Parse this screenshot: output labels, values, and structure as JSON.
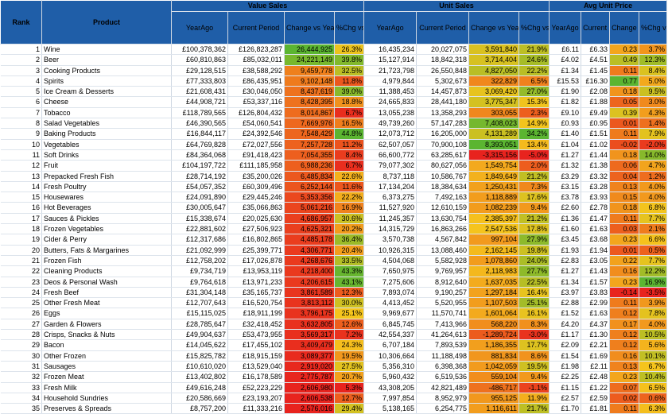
{
  "chart_data": {
    "type": "table",
    "group_headers": [
      "Value Sales",
      "Unit Sales",
      "Avg Unit Price"
    ],
    "columns": [
      "Rank",
      "Product",
      "YearAgo",
      "Current Period",
      "Change vs Year Ago",
      "%Chg vs YA",
      "YearAgo",
      "Current Period",
      "Change vs Year Ago",
      "%Chg vs YA",
      "YearAgo",
      "Current Period",
      "Change vs Year Ago",
      "%Chg vs YA"
    ],
    "rows": [
      [
        "1",
        "Wine",
        "£100,378,362",
        "£126,823,287",
        "26,444,925",
        "26.3%",
        "16,435,234",
        "20,027,075",
        "3,591,840",
        "21.9%",
        "£6.11",
        "£6.33",
        "0.23",
        "3.7%"
      ],
      [
        "2",
        "Beer",
        "£60,810,863",
        "£85,032,011",
        "24,221,149",
        "39.8%",
        "15,127,914",
        "18,842,318",
        "3,714,404",
        "24.6%",
        "£4.02",
        "£4.51",
        "0.49",
        "12.3%"
      ],
      [
        "3",
        "Cooking Products",
        "£29,128,515",
        "£38,588,292",
        "9,459,778",
        "32.5%",
        "21,723,798",
        "26,550,848",
        "4,827,050",
        "22.2%",
        "£1.34",
        "£1.45",
        "0.11",
        "8.4%"
      ],
      [
        "4",
        "Spirits",
        "£77,333,803",
        "£86,435,951",
        "9,102,148",
        "11.8%",
        "4,979,844",
        "5,302,673",
        "322,829",
        "6.5%",
        "£15.53",
        "£16.30",
        "0.77",
        "5.0%"
      ],
      [
        "5",
        "Ice Cream & Desserts",
        "£21,608,431",
        "£30,046,050",
        "8,437,619",
        "39.0%",
        "11,388,453",
        "14,457,873",
        "3,069,420",
        "27.0%",
        "£1.90",
        "£2.08",
        "0.18",
        "9.5%"
      ],
      [
        "6",
        "Cheese",
        "£44,908,721",
        "£53,337,116",
        "8,428,395",
        "18.8%",
        "24,665,833",
        "28,441,180",
        "3,775,347",
        "15.3%",
        "£1.82",
        "£1.88",
        "0.05",
        "3.0%"
      ],
      [
        "7",
        "Tobacco",
        "£118,789,565",
        "£126,804,432",
        "8,014,867",
        "6.7%",
        "13,055,238",
        "13,358,293",
        "303,055",
        "2.3%",
        "£9.10",
        "£9.49",
        "0.39",
        "4.3%"
      ],
      [
        "8",
        "Salad Vegetables",
        "£46,390,565",
        "£54,060,541",
        "7,669,976",
        "16.5%",
        "49,739,260",
        "57,147,283",
        "7,408,023",
        "14.9%",
        "£0.93",
        "£0.95",
        "0.01",
        "1.4%"
      ],
      [
        "9",
        "Baking Products",
        "£16,844,117",
        "£24,392,546",
        "7,548,429",
        "44.8%",
        "12,073,712",
        "16,205,000",
        "4,131,289",
        "34.2%",
        "£1.40",
        "£1.51",
        "0.11",
        "7.9%"
      ],
      [
        "10",
        "Vegetables",
        "£64,769,828",
        "£72,027,556",
        "7,257,728",
        "11.2%",
        "62,507,057",
        "70,900,108",
        "8,393,051",
        "13.4%",
        "£1.04",
        "£1.02",
        "-0.02",
        "-2.0%"
      ],
      [
        "11",
        "Soft Drinks",
        "£84,364,068",
        "£91,418,423",
        "7,054,355",
        "8.4%",
        "66,600,772",
        "63,285,617",
        "-3,315,156",
        "-5.0%",
        "£1.27",
        "£1.44",
        "0.18",
        "14.0%"
      ],
      [
        "12",
        "Fruit",
        "£104,197,722",
        "£111,185,958",
        "6,988,236",
        "6.7%",
        "79,077,302",
        "80,627,056",
        "1,549,754",
        "2.0%",
        "£1.32",
        "£1.38",
        "0.06",
        "4.7%"
      ],
      [
        "13",
        "Prepacked Fresh Fish",
        "£28,714,192",
        "£35,200,026",
        "6,485,834",
        "22.6%",
        "8,737,118",
        "10,586,767",
        "1,849,649",
        "21.2%",
        "£3.29",
        "£3.32",
        "0.04",
        "1.2%"
      ],
      [
        "14",
        "Fresh Poultry",
        "£54,057,352",
        "£60,309,496",
        "6,252,144",
        "11.6%",
        "17,134,204",
        "18,384,634",
        "1,250,431",
        "7.3%",
        "£3.15",
        "£3.28",
        "0.13",
        "4.0%"
      ],
      [
        "15",
        "Housewares",
        "£24,091,890",
        "£29,445,246",
        "5,353,356",
        "22.2%",
        "6,373,275",
        "7,492,163",
        "1,118,889",
        "17.6%",
        "£3.78",
        "£3.93",
        "0.15",
        "4.0%"
      ],
      [
        "16",
        "Hot Beverages",
        "£30,005,647",
        "£35,066,863",
        "5,061,216",
        "16.9%",
        "11,527,920",
        "12,610,159",
        "1,082,239",
        "9.4%",
        "£2.60",
        "£2.78",
        "0.18",
        "6.8%"
      ],
      [
        "17",
        "Sauces & Pickles",
        "£15,338,674",
        "£20,025,630",
        "4,686,957",
        "30.6%",
        "11,245,357",
        "13,630,754",
        "2,385,397",
        "21.2%",
        "£1.36",
        "£1.47",
        "0.11",
        "7.7%"
      ],
      [
        "18",
        "Frozen Vegetables",
        "£22,881,602",
        "£27,506,923",
        "4,625,321",
        "20.2%",
        "14,315,729",
        "16,863,266",
        "2,547,536",
        "17.8%",
        "£1.60",
        "£1.63",
        "0.03",
        "2.1%"
      ],
      [
        "19",
        "Cider & Perry",
        "£12,317,686",
        "£16,802,865",
        "4,485,178",
        "36.4%",
        "3,570,738",
        "4,567,842",
        "997,104",
        "27.9%",
        "£3.45",
        "£3.68",
        "0.23",
        "6.6%"
      ],
      [
        "20",
        "Butters, Fats & Margarines",
        "£21,092,999",
        "£25,399,771",
        "4,306,771",
        "20.4%",
        "10,926,315",
        "13,088,460",
        "2,162,145",
        "19.8%",
        "£1.93",
        "£1.94",
        "0.01",
        "0.5%"
      ],
      [
        "21",
        "Frozen Fish",
        "£12,758,202",
        "£17,026,878",
        "4,268,676",
        "33.5%",
        "4,504,068",
        "5,582,928",
        "1,078,860",
        "24.0%",
        "£2.83",
        "£3.05",
        "0.22",
        "7.7%"
      ],
      [
        "22",
        "Cleaning Products",
        "£9,734,719",
        "£13,953,119",
        "4,218,400",
        "43.3%",
        "7,650,975",
        "9,769,957",
        "2,118,983",
        "27.7%",
        "£1.27",
        "£1.43",
        "0.16",
        "12.2%"
      ],
      [
        "23",
        "Deos & Personal Wash",
        "£9,764,618",
        "£13,971,233",
        "4,206,615",
        "43.1%",
        "7,275,606",
        "8,912,640",
        "1,637,035",
        "22.5%",
        "£1.34",
        "£1.57",
        "0.23",
        "16.9%"
      ],
      [
        "24",
        "Fresh Beef",
        "£31,304,148",
        "£35,165,737",
        "3,861,589",
        "12.3%",
        "7,893,074",
        "9,190,257",
        "1,297,184",
        "16.4%",
        "£3.97",
        "£3.83",
        "-0.14",
        "-3.5%"
      ],
      [
        "25",
        "Other Fresh Meat",
        "£12,707,643",
        "£16,520,754",
        "3,813,112",
        "30.0%",
        "4,413,452",
        "5,520,955",
        "1,107,503",
        "25.1%",
        "£2.88",
        "£2.99",
        "0.11",
        "3.9%"
      ],
      [
        "26",
        "Eggs",
        "£15,115,025",
        "£18,911,199",
        "3,796,175",
        "25.1%",
        "9,969,677",
        "11,570,741",
        "1,601,064",
        "16.1%",
        "£1.52",
        "£1.63",
        "0.12",
        "7.8%"
      ],
      [
        "27",
        "Garden & Flowers",
        "£28,785,647",
        "£32,418,452",
        "3,632,805",
        "12.6%",
        "6,845,745",
        "7,413,966",
        "568,220",
        "8.3%",
        "£4.20",
        "£4.37",
        "0.17",
        "4.0%"
      ],
      [
        "28",
        "Crisps, Snacks & Nuts",
        "£49,904,637",
        "£53,473,955",
        "3,569,317",
        "7.2%",
        "42,554,337",
        "41,264,613",
        "-1,289,724",
        "-3.0%",
        "£1.17",
        "£1.30",
        "0.12",
        "10.5%"
      ],
      [
        "29",
        "Bacon",
        "£14,045,622",
        "£17,455,102",
        "3,409,479",
        "24.3%",
        "6,707,184",
        "7,893,539",
        "1,186,355",
        "17.7%",
        "£2.09",
        "£2.21",
        "0.12",
        "5.6%"
      ],
      [
        "30",
        "Other Frozen",
        "£15,825,782",
        "£18,915,159",
        "3,089,377",
        "19.5%",
        "10,306,664",
        "11,188,498",
        "881,834",
        "8.6%",
        "£1.54",
        "£1.69",
        "0.16",
        "10.1%"
      ],
      [
        "31",
        "Sausages",
        "£10,610,020",
        "£13,529,040",
        "2,919,020",
        "27.5%",
        "5,356,310",
        "6,398,368",
        "1,042,059",
        "19.5%",
        "£1.98",
        "£2.11",
        "0.13",
        "6.7%"
      ],
      [
        "32",
        "Frozen Meat",
        "£13,402,802",
        "£16,178,589",
        "2,775,787",
        "20.7%",
        "5,960,432",
        "6,519,536",
        "559,104",
        "9.4%",
        "£2.25",
        "£2.48",
        "0.23",
        "10.4%"
      ],
      [
        "33",
        "Fresh Milk",
        "£49,616,248",
        "£52,223,229",
        "2,606,980",
        "5.3%",
        "43,308,205",
        "42,821,489",
        "-486,717",
        "-1.1%",
        "£1.15",
        "£1.22",
        "0.07",
        "6.5%"
      ],
      [
        "34",
        "Household Sundries",
        "£20,586,669",
        "£23,193,207",
        "2,606,538",
        "12.7%",
        "7,997,854",
        "8,952,979",
        "955,125",
        "11.9%",
        "£2.57",
        "£2.59",
        "0.02",
        "0.6%"
      ],
      [
        "35",
        "Preserves & Spreads",
        "£8,757,200",
        "£11,333,216",
        "2,576,016",
        "29.4%",
        "5,138,165",
        "6,254,775",
        "1,116,611",
        "21.7%",
        "£1.70",
        "£1.81",
        "0.11",
        "6.3%"
      ]
    ],
    "color_scale": {
      "low": "#e8231e",
      "mid": "#f5c41d",
      "high": "#5bb531"
    }
  }
}
